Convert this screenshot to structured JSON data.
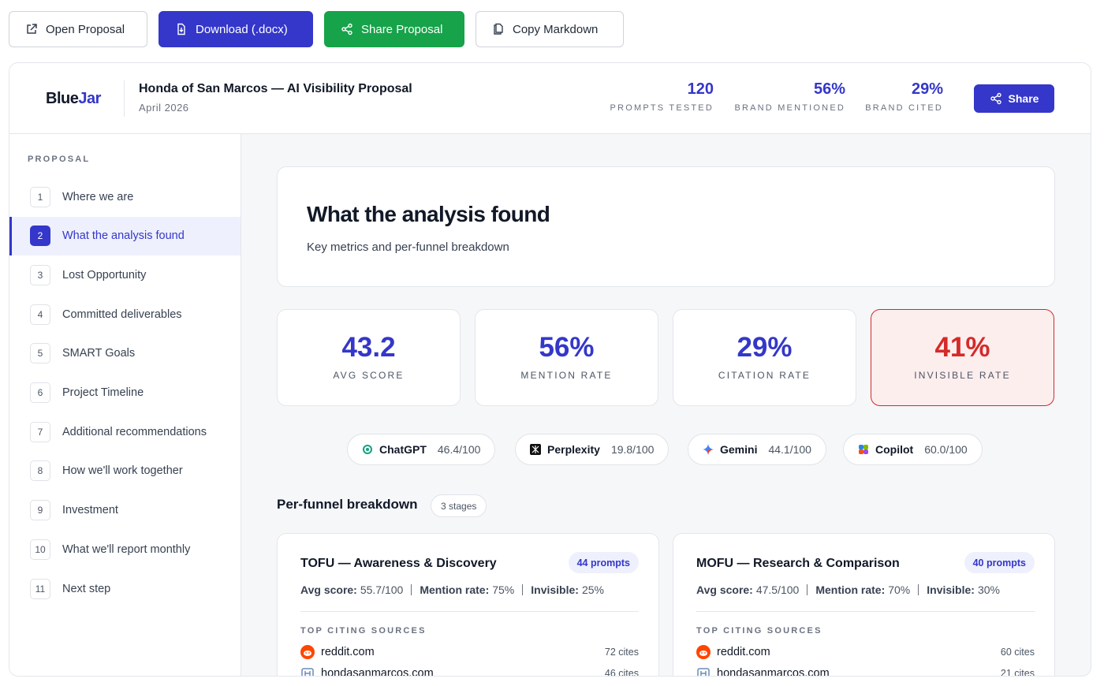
{
  "toolbar": {
    "buttons": [
      "Open Proposal",
      "Download (.docx)",
      "Share Proposal",
      "Copy Markdown"
    ]
  },
  "header": {
    "brand": [
      "Blue",
      "Jar"
    ],
    "title": "Honda of San Marcos — AI Visibility Proposal",
    "date": "April 2026",
    "stats": [
      {
        "value": "120",
        "label": "PROMPTS TESTED"
      },
      {
        "value": "56%",
        "label": "BRAND MENTIONED"
      },
      {
        "value": "29%",
        "label": "BRAND CITED"
      }
    ],
    "share": "Share"
  },
  "sidebar": {
    "heading": "PROPOSAL",
    "active": 1,
    "items": [
      {
        "num": "1",
        "label": "Where we are"
      },
      {
        "num": "2",
        "label": "What the analysis found"
      },
      {
        "num": "3",
        "label": "Lost Opportunity"
      },
      {
        "num": "4",
        "label": "Committed deliverables"
      },
      {
        "num": "5",
        "label": "SMART Goals"
      },
      {
        "num": "6",
        "label": "Project Timeline"
      },
      {
        "num": "7",
        "label": "Additional recommendations"
      },
      {
        "num": "8",
        "label": "How we'll work together"
      },
      {
        "num": "9",
        "label": "Investment"
      },
      {
        "num": "10",
        "label": "What we'll report monthly"
      },
      {
        "num": "11",
        "label": "Next step"
      }
    ]
  },
  "section": {
    "title": "What the analysis found",
    "subtitle": "Key metrics and per-funnel breakdown"
  },
  "metrics": [
    {
      "value": "43.2",
      "label": "AVG SCORE",
      "color": "#3437c9"
    },
    {
      "value": "56%",
      "label": "MENTION RATE",
      "color": "#3437c9"
    },
    {
      "value": "29%",
      "label": "CITATION RATE",
      "color": "#3437c9"
    },
    {
      "value": "41%",
      "label": "INVISIBLE RATE",
      "color": "#d42a2a"
    }
  ],
  "engines": [
    {
      "name": "ChatGPT",
      "score": "46.4/100"
    },
    {
      "name": "Perplexity",
      "score": "19.8/100"
    },
    {
      "name": "Gemini",
      "score": "44.1/100"
    },
    {
      "name": "Copilot",
      "score": "60.0/100"
    }
  ],
  "breakdown": {
    "title": "Per-funnel breakdown",
    "badge": "3 stages",
    "funnels": [
      {
        "title": "TOFU — Awareness & Discovery",
        "prompts": "44 prompts",
        "stats": [
          {
            "label": "Avg score:",
            "value": "55.7/100"
          },
          {
            "label": "Mention rate:",
            "value": "75%"
          },
          {
            "label": "Invisible:",
            "value": "25%"
          }
        ],
        "sources_heading": "TOP CITING SOURCES",
        "sources": [
          {
            "domain": "reddit.com",
            "cites": "72 cites"
          },
          {
            "domain": "hondasanmarcos.com",
            "cites": "46 cites"
          }
        ]
      },
      {
        "title": "MOFU — Research & Comparison",
        "prompts": "40 prompts",
        "stats": [
          {
            "label": "Avg score:",
            "value": "47.5/100"
          },
          {
            "label": "Mention rate:",
            "value": "70%"
          },
          {
            "label": "Invisible:",
            "value": "30%"
          }
        ],
        "sources_heading": "TOP CITING SOURCES",
        "sources": [
          {
            "domain": "reddit.com",
            "cites": "60 cites"
          },
          {
            "domain": "hondasanmarcos.com",
            "cites": "21 cites"
          }
        ]
      }
    ]
  }
}
